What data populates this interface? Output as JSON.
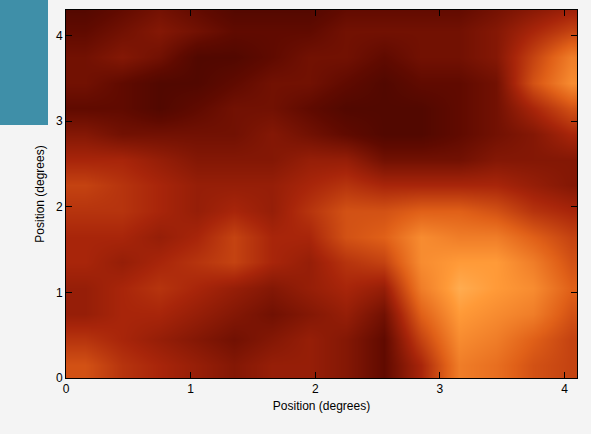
{
  "chart_data": {
    "type": "heatmap",
    "xlabel": "Position (degrees)",
    "ylabel": "Position (degrees)",
    "xlim": [
      0,
      4.1
    ],
    "ylim": [
      0,
      4.3
    ],
    "xticks": [
      0,
      1,
      2,
      3,
      4
    ],
    "yticks": [
      0,
      1,
      2,
      3,
      4
    ],
    "zlim": [
      0,
      1
    ],
    "tick_labels": true,
    "x": [
      0.15,
      0.45,
      0.75,
      1.05,
      1.35,
      1.65,
      1.95,
      2.25,
      2.55,
      2.85,
      3.15,
      3.45,
      3.75,
      4.05
    ],
    "y": [
      0.15,
      0.45,
      0.75,
      1.05,
      1.35,
      1.65,
      1.95,
      2.25,
      2.55,
      2.85,
      3.15,
      3.45,
      3.75,
      4.05,
      4.35
    ],
    "cells": [
      [
        0.6,
        0.5,
        0.45,
        0.4,
        0.35,
        0.4,
        0.4,
        0.35,
        0.25,
        0.45,
        0.75,
        0.7,
        0.6,
        0.55
      ],
      [
        0.5,
        0.45,
        0.4,
        0.35,
        0.3,
        0.35,
        0.4,
        0.35,
        0.25,
        0.55,
        0.8,
        0.75,
        0.65,
        0.55
      ],
      [
        0.4,
        0.45,
        0.45,
        0.4,
        0.35,
        0.3,
        0.35,
        0.4,
        0.3,
        0.65,
        0.85,
        0.8,
        0.75,
        0.6
      ],
      [
        0.4,
        0.45,
        0.5,
        0.45,
        0.4,
        0.35,
        0.4,
        0.45,
        0.4,
        0.75,
        0.9,
        0.85,
        0.8,
        0.65
      ],
      [
        0.45,
        0.4,
        0.45,
        0.5,
        0.55,
        0.45,
        0.4,
        0.5,
        0.55,
        0.8,
        0.85,
        0.85,
        0.75,
        0.6
      ],
      [
        0.45,
        0.45,
        0.4,
        0.45,
        0.55,
        0.45,
        0.45,
        0.6,
        0.65,
        0.8,
        0.75,
        0.75,
        0.65,
        0.55
      ],
      [
        0.5,
        0.5,
        0.45,
        0.4,
        0.45,
        0.4,
        0.5,
        0.6,
        0.6,
        0.65,
        0.65,
        0.6,
        0.5,
        0.45
      ],
      [
        0.55,
        0.5,
        0.45,
        0.4,
        0.4,
        0.4,
        0.45,
        0.5,
        0.45,
        0.45,
        0.45,
        0.45,
        0.4,
        0.35
      ],
      [
        0.45,
        0.45,
        0.4,
        0.35,
        0.35,
        0.35,
        0.4,
        0.4,
        0.3,
        0.3,
        0.3,
        0.35,
        0.35,
        0.35
      ],
      [
        0.35,
        0.3,
        0.3,
        0.3,
        0.3,
        0.35,
        0.3,
        0.25,
        0.2,
        0.2,
        0.25,
        0.3,
        0.35,
        0.45
      ],
      [
        0.25,
        0.25,
        0.2,
        0.25,
        0.3,
        0.3,
        0.25,
        0.2,
        0.2,
        0.2,
        0.25,
        0.3,
        0.45,
        0.6
      ],
      [
        0.3,
        0.25,
        0.2,
        0.2,
        0.25,
        0.3,
        0.3,
        0.25,
        0.2,
        0.25,
        0.25,
        0.3,
        0.6,
        0.8
      ],
      [
        0.3,
        0.35,
        0.3,
        0.2,
        0.2,
        0.25,
        0.3,
        0.3,
        0.25,
        0.3,
        0.3,
        0.35,
        0.55,
        0.75
      ],
      [
        0.25,
        0.3,
        0.35,
        0.3,
        0.25,
        0.25,
        0.25,
        0.3,
        0.3,
        0.3,
        0.3,
        0.35,
        0.45,
        0.55
      ],
      [
        0.2,
        0.25,
        0.3,
        0.25,
        0.2,
        0.2,
        0.2,
        0.25,
        0.25,
        0.25,
        0.25,
        0.3,
        0.35,
        0.4
      ]
    ]
  }
}
